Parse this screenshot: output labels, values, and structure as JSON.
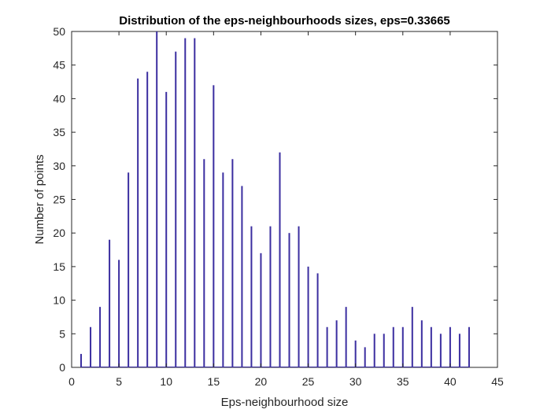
{
  "chart_data": {
    "type": "bar",
    "title": "Distribution of the eps-neighbourhoods sizes, eps=0.33665",
    "xlabel": "Eps-neighbourhood size",
    "ylabel": "Number of points",
    "xlim": [
      0,
      45
    ],
    "ylim": [
      0,
      50
    ],
    "xticks": [
      0,
      5,
      10,
      15,
      20,
      25,
      30,
      35,
      40,
      45
    ],
    "yticks": [
      0,
      5,
      10,
      15,
      20,
      25,
      30,
      35,
      40,
      45,
      50
    ],
    "grid": false,
    "bar_color": "#3b2ea0",
    "x": [
      1,
      2,
      3,
      4,
      5,
      6,
      7,
      8,
      9,
      10,
      11,
      12,
      13,
      14,
      15,
      16,
      17,
      18,
      19,
      20,
      21,
      22,
      23,
      24,
      25,
      26,
      27,
      28,
      29,
      30,
      31,
      32,
      33,
      34,
      35,
      36,
      37,
      38,
      39,
      40,
      41,
      42
    ],
    "values": [
      2,
      6,
      9,
      19,
      16,
      29,
      43,
      44,
      50,
      41,
      47,
      49,
      49,
      31,
      42,
      29,
      31,
      27,
      21,
      17,
      21,
      32,
      20,
      21,
      15,
      14,
      6,
      7,
      9,
      4,
      3,
      5,
      5,
      6,
      6,
      9,
      7,
      6,
      5,
      6,
      5,
      6
    ]
  }
}
